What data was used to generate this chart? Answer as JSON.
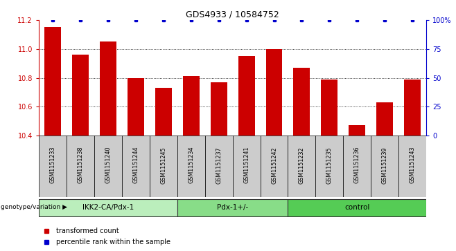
{
  "title": "GDS4933 / 10584752",
  "samples": [
    "GSM1151233",
    "GSM1151238",
    "GSM1151240",
    "GSM1151244",
    "GSM1151245",
    "GSM1151234",
    "GSM1151237",
    "GSM1151241",
    "GSM1151242",
    "GSM1151232",
    "GSM1151235",
    "GSM1151236",
    "GSM1151239",
    "GSM1151243"
  ],
  "red_values": [
    11.15,
    10.96,
    11.05,
    10.8,
    10.73,
    10.81,
    10.77,
    10.95,
    11.0,
    10.87,
    10.79,
    10.47,
    10.63,
    10.79
  ],
  "blue_values": [
    100,
    100,
    100,
    100,
    100,
    100,
    100,
    100,
    100,
    100,
    100,
    100,
    100,
    100
  ],
  "groups": [
    {
      "label": "IKK2-CA/Pdx-1",
      "start": 0,
      "end": 4,
      "color": "#bbeebc"
    },
    {
      "label": "Pdx-1+/-",
      "start": 5,
      "end": 8,
      "color": "#88dd88"
    },
    {
      "label": "control",
      "start": 9,
      "end": 13,
      "color": "#55cc55"
    }
  ],
  "ylim_left": [
    10.4,
    11.2
  ],
  "ylim_right": [
    0,
    100
  ],
  "yticks_left": [
    10.4,
    10.6,
    10.8,
    11.0,
    11.2
  ],
  "yticks_right": [
    0,
    25,
    50,
    75,
    100
  ],
  "ytick_labels_right": [
    "0",
    "25",
    "50",
    "75",
    "100%"
  ],
  "bar_color": "#cc0000",
  "dot_color": "#0000cc",
  "label_area_color": "#cccccc",
  "legend_red": "transformed count",
  "legend_blue": "percentile rank within the sample",
  "genotype_label": "genotype/variation"
}
